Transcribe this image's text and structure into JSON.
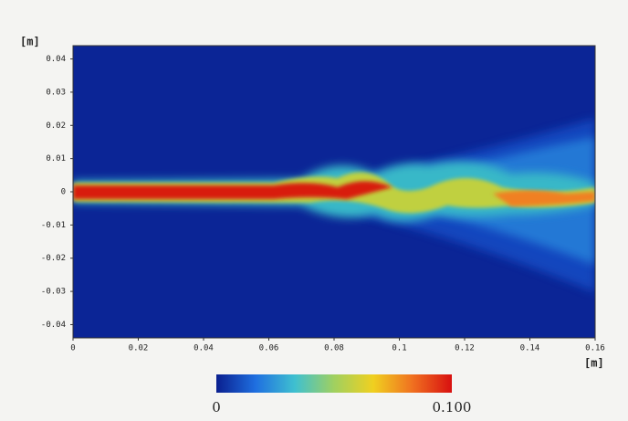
{
  "chart_data": {
    "type": "heatmap",
    "x_label": "[m]",
    "y_label": "[m]",
    "xlim": [
      0,
      0.16
    ],
    "xticks": [
      0,
      0.02,
      0.04,
      0.06,
      0.08,
      0.1,
      0.12,
      0.14,
      0.16
    ],
    "ylim": [
      -0.044,
      0.044
    ],
    "yticks": [
      0.04,
      0.03,
      0.02,
      0.01,
      0,
      -0.01,
      -0.02,
      -0.03,
      -0.04
    ],
    "colorbar": {
      "ticks": [
        0,
        {
          "value": 0.1,
          "label": "0.100"
        }
      ],
      "colors": [
        "#0a1f8f",
        "#1f6fe0",
        "#3fc0d0",
        "#a0d060",
        "#f0d020",
        "#f07020",
        "#d81010"
      ]
    }
  }
}
